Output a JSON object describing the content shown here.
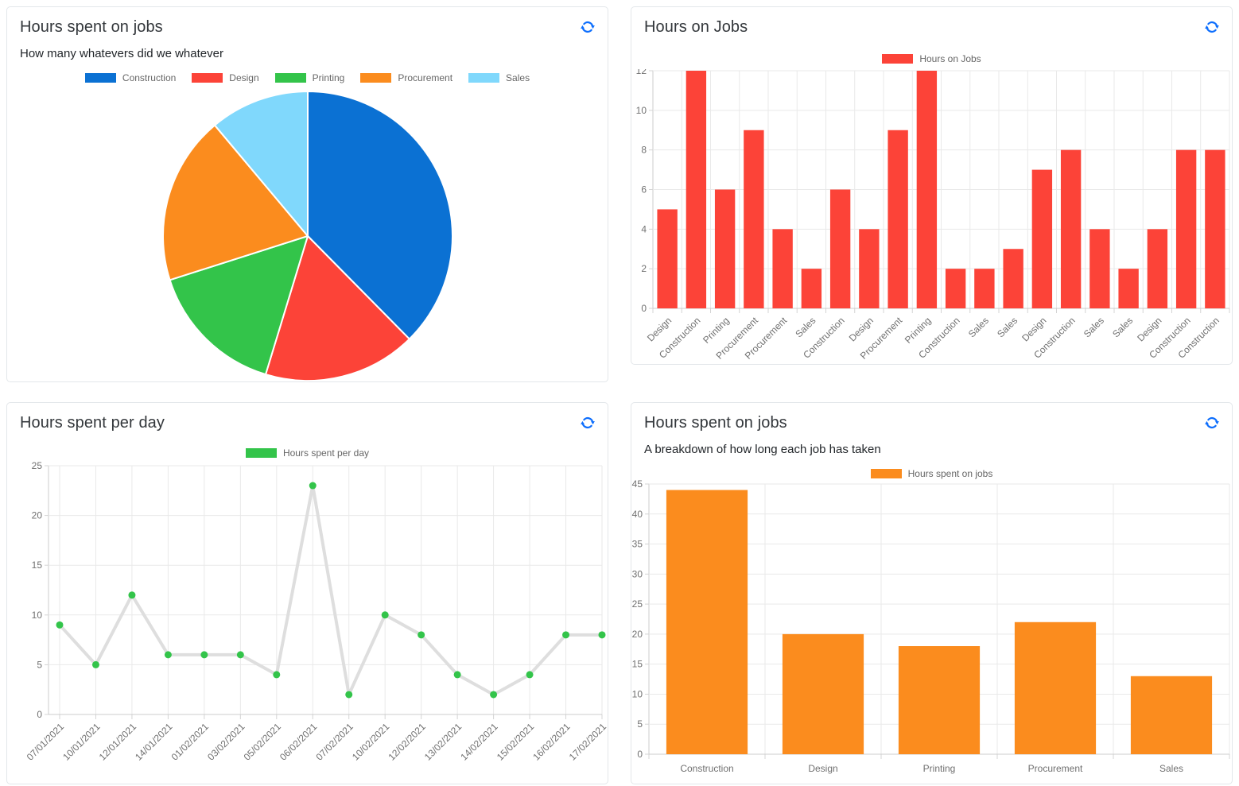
{
  "ui": {
    "refresh_icon_color": "#0d6efd",
    "panels": [
      {
        "title": "Hours spent on jobs",
        "subtitle": "How many whatevers did we whatever"
      },
      {
        "title": "Hours on Jobs"
      },
      {
        "title": "Hours spent per day"
      },
      {
        "title": "Hours spent on jobs",
        "subtitle": "A breakdown of how long each job has taken"
      }
    ]
  },
  "chart_data": [
    {
      "id": "pie-hours-on-jobs",
      "type": "pie",
      "title": "Hours spent on jobs",
      "subtitle": "How many whatevers did we whatever",
      "legend_position": "top",
      "categories": [
        "Construction",
        "Design",
        "Printing",
        "Procurement",
        "Sales"
      ],
      "values": [
        44,
        20,
        18,
        22,
        13
      ],
      "colors": [
        "#0b71d3",
        "#fc4338",
        "#33c44a",
        "#fb8c1e",
        "#80d8fc"
      ]
    },
    {
      "id": "bar-hours-on-jobs",
      "type": "bar",
      "title": "Hours on Jobs",
      "legend_label": "Hours on Jobs",
      "legend_position": "top",
      "bar_color": "#fc4338",
      "categories": [
        "Design",
        "Construction",
        "Printing",
        "Procurement",
        "Procurement",
        "Sales",
        "Construction",
        "Design",
        "Procurement",
        "Printing",
        "Construction",
        "Sales",
        "Sales",
        "Design",
        "Construction",
        "Sales",
        "Sales",
        "Design",
        "Construction",
        "Construction"
      ],
      "values": [
        5,
        12,
        6,
        9,
        4,
        2,
        6,
        4,
        9,
        12,
        2,
        2,
        3,
        7,
        8,
        4,
        2,
        4,
        8,
        8
      ],
      "ylim": [
        0,
        12
      ],
      "yticks": [
        0,
        2,
        4,
        6,
        8,
        10,
        12
      ],
      "grid": true,
      "x_label_rotation": -45
    },
    {
      "id": "line-hours-per-day",
      "type": "line",
      "title": "Hours spent per day",
      "legend_label": "Hours spent per day",
      "legend_position": "top",
      "point_color": "#33c44a",
      "line_color": "#dedede",
      "categories": [
        "07/01/2021",
        "10/01/2021",
        "12/01/2021",
        "14/01/2021",
        "01/02/2021",
        "03/02/2021",
        "05/02/2021",
        "06/02/2021",
        "07/02/2021",
        "10/02/2021",
        "12/02/2021",
        "13/02/2021",
        "14/02/2021",
        "15/02/2021",
        "16/02/2021",
        "17/02/2021"
      ],
      "values": [
        9,
        5,
        12,
        6,
        6,
        6,
        4,
        23,
        2,
        10,
        8,
        4,
        2,
        4,
        8,
        8
      ],
      "ylim": [
        0,
        25
      ],
      "yticks": [
        0,
        5,
        10,
        15,
        20,
        25
      ],
      "grid": true,
      "x_label_rotation": -45
    },
    {
      "id": "bar-hours-per-job",
      "type": "bar",
      "title": "Hours spent on jobs",
      "subtitle": "A breakdown of how long each job has taken",
      "legend_label": "Hours spent on jobs",
      "legend_position": "top",
      "bar_color": "#fb8c1e",
      "categories": [
        "Construction",
        "Design",
        "Printing",
        "Procurement",
        "Sales"
      ],
      "values": [
        44,
        20,
        18,
        22,
        13
      ],
      "ylim": [
        0,
        45
      ],
      "yticks": [
        0,
        5,
        10,
        15,
        20,
        25,
        30,
        35,
        40,
        45
      ],
      "grid": true,
      "x_label_rotation": 0
    }
  ]
}
